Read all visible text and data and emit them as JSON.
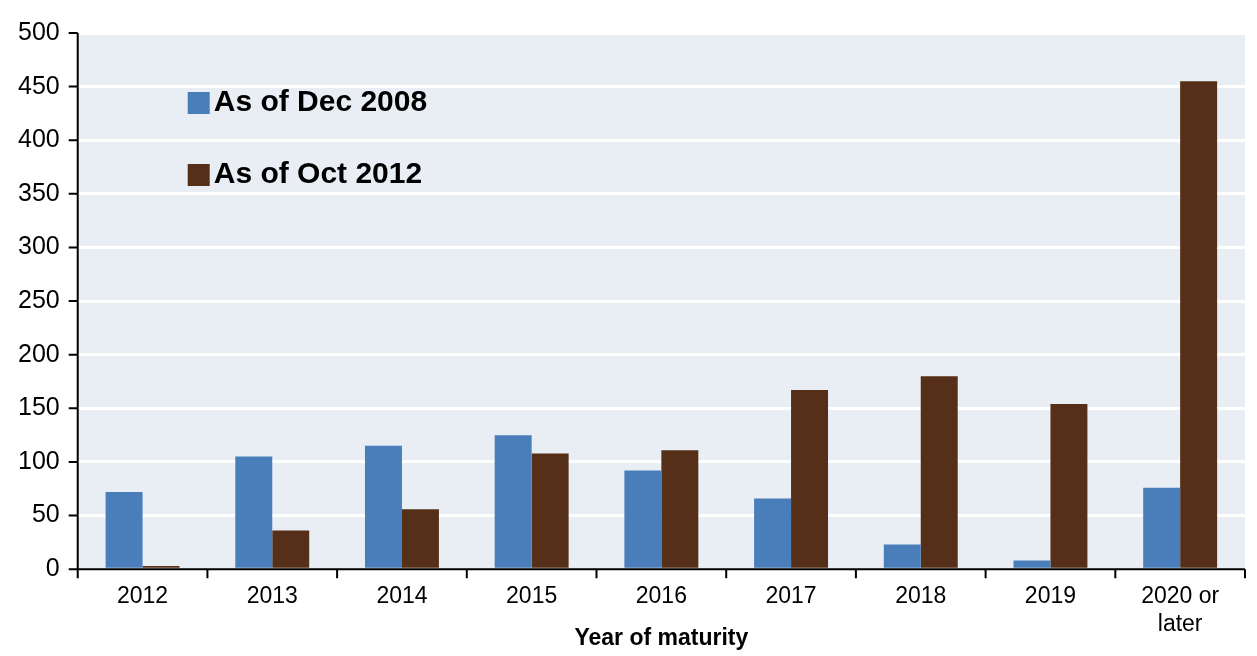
{
  "chart_data": {
    "type": "bar",
    "xlabel": "Year of maturity",
    "categories": [
      "2012",
      "2013",
      "2014",
      "2015",
      "2016",
      "2017",
      "2018",
      "2019",
      "2020 or later"
    ],
    "series": [
      {
        "name": "As of Dec 2008",
        "color": "#4a7ebb",
        "values": [
          72,
          105,
          115,
          125,
          92,
          66,
          23,
          8,
          76
        ]
      },
      {
        "name": "As of Oct 2012",
        "color": "#552f17",
        "values": [
          3,
          36,
          56,
          108,
          111,
          167,
          180,
          154,
          455
        ]
      }
    ],
    "ylim": [
      0,
      500
    ],
    "yticks": [
      0,
      50,
      100,
      150,
      200,
      250,
      300,
      350,
      400,
      450,
      500
    ],
    "grid": "y",
    "legend": "top left"
  }
}
